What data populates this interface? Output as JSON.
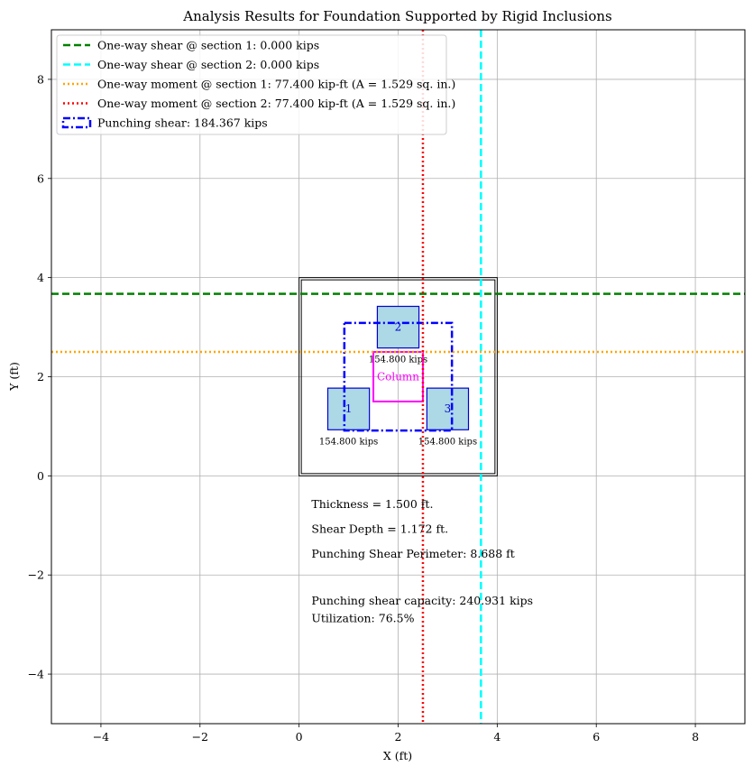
{
  "chart_data": {
    "type": "scatter",
    "title": "Analysis Results for Foundation Supported by Rigid Inclusions",
    "xlabel": "X (ft)",
    "ylabel": "Y (ft)",
    "xlim": [
      -5,
      9
    ],
    "ylim": [
      -5,
      9
    ],
    "grid": true,
    "legend_position": "top-left",
    "x_ticks": [
      -4,
      -2,
      0,
      2,
      4,
      6,
      8
    ],
    "y_ticks": [
      -4,
      -2,
      0,
      2,
      4,
      6,
      8
    ],
    "foundation": {
      "x": [
        0,
        4
      ],
      "y": [
        0,
        4
      ]
    },
    "column": {
      "x": [
        1.5,
        2.5
      ],
      "y": [
        1.5,
        2.5
      ],
      "label": "Column",
      "color": "#ff00ff"
    },
    "inclusions": [
      {
        "id": "1",
        "x": [
          0.58,
          1.42
        ],
        "y": [
          0.93,
          1.77
        ],
        "center": [
          1.0,
          1.35
        ],
        "load": "154.800 kips"
      },
      {
        "id": "2",
        "x": [
          1.58,
          2.42
        ],
        "y": [
          2.58,
          3.42
        ],
        "center": [
          2.0,
          3.0
        ],
        "load": "154.800 kips"
      },
      {
        "id": "3",
        "x": [
          2.58,
          3.42
        ],
        "y": [
          0.93,
          1.77
        ],
        "center": [
          3.0,
          1.35
        ],
        "load": "154.800 kips"
      }
    ],
    "punching_perimeter": {
      "x": [
        0.914,
        3.086
      ],
      "y": [
        0.914,
        3.086
      ]
    },
    "series": [
      {
        "name": "One-way shear @ section 1: 0.000 kips",
        "orientation": "horizontal",
        "value": 3.672,
        "color": "#008000",
        "style": "dashed"
      },
      {
        "name": "One-way shear @ section 2: 0.000 kips",
        "orientation": "vertical",
        "value": 3.672,
        "color": "#00ffff",
        "style": "dashed"
      },
      {
        "name": "One-way moment @ section 1: 77.400 kip-ft (A = 1.529 sq. in.)",
        "orientation": "horizontal",
        "value": 2.5,
        "color": "#ffa500",
        "style": "dotted"
      },
      {
        "name": "One-way moment @ section 2: 77.400 kip-ft (A = 1.529 sq. in.)",
        "orientation": "vertical",
        "value": 2.5,
        "color": "#ff0000",
        "style": "dotted"
      },
      {
        "name": "Punching shear: 184.367 kips",
        "orientation": "perimeter",
        "color": "#0000ff",
        "style": "dashdot"
      }
    ],
    "annotations": [
      {
        "text": "Thickness = 1.500 ft.",
        "x": 0.25,
        "y": -0.65
      },
      {
        "text": "Shear Depth = 1.172 ft.",
        "x": 0.25,
        "y": -1.15
      },
      {
        "text": "Punching Shear Perimeter: 8.688 ft",
        "x": 0.25,
        "y": -1.65
      },
      {
        "text": "Punching shear capacity: 240.931 kips",
        "x": 0.25,
        "y": -2.6
      },
      {
        "text": "Utilization: 76.5%",
        "x": 0.25,
        "y": -2.95
      }
    ]
  }
}
